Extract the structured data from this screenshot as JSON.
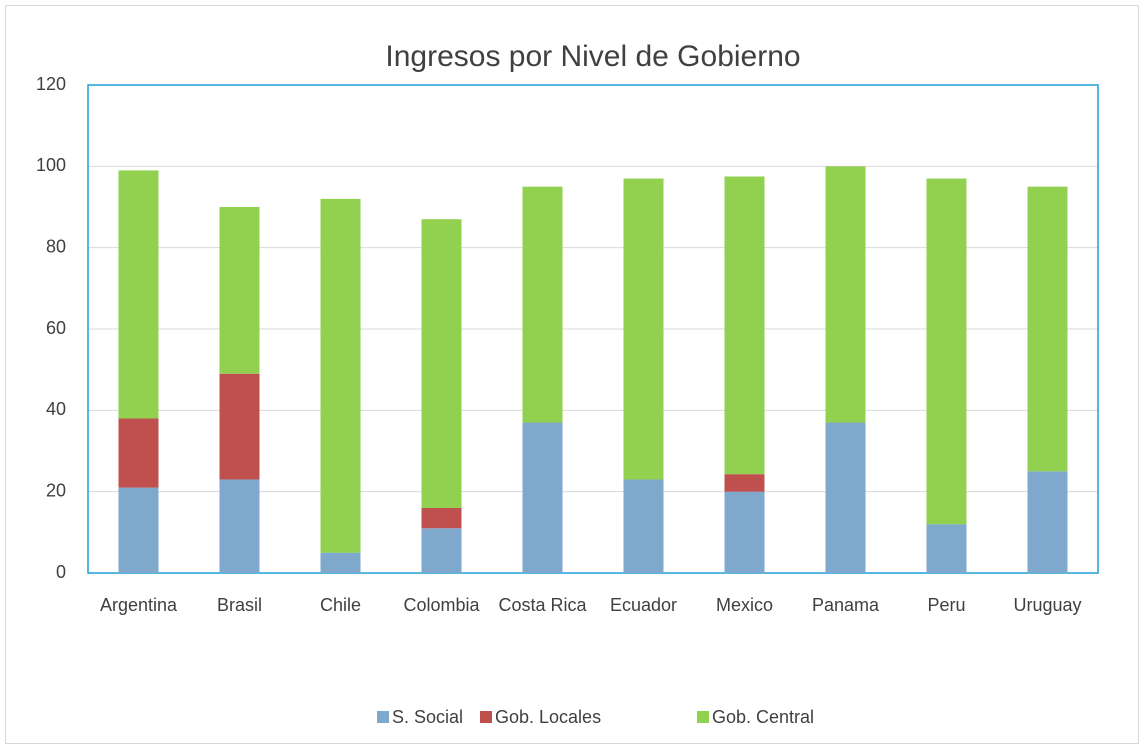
{
  "chart_data": {
    "type": "stacked_bar",
    "title": "Ingresos por Nivel de Gobierno",
    "categories": [
      "Argentina",
      "Brasil",
      "Chile",
      "Colombia",
      "Costa Rica",
      "Ecuador",
      "Mexico",
      "Panama",
      "Peru",
      "Uruguay"
    ],
    "series": [
      {
        "name": "S. Social",
        "color": "#7ea8cc",
        "values": [
          21,
          23,
          5,
          11,
          37,
          23,
          20,
          37,
          12,
          25
        ]
      },
      {
        "name": "Gob. Locales",
        "color": "#c0504d",
        "values": [
          17,
          26,
          0,
          5,
          0,
          0,
          4.3,
          0,
          0,
          0
        ]
      },
      {
        "name": "Gob. Central",
        "color": "#92d050",
        "values": [
          61,
          41,
          87,
          71,
          58,
          74,
          73.2,
          63,
          85,
          70
        ]
      }
    ],
    "ylim": [
      0,
      120
    ],
    "yticks": [
      0,
      20,
      40,
      60,
      80,
      100,
      120
    ],
    "grid": true
  }
}
